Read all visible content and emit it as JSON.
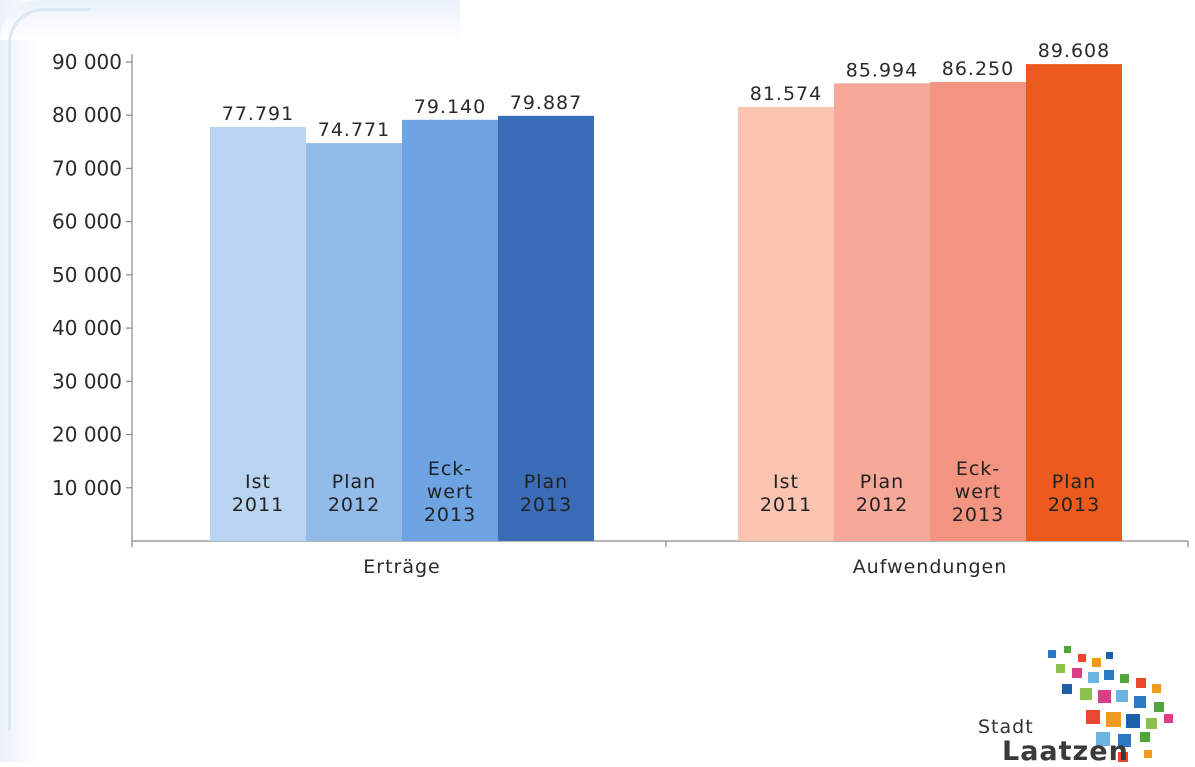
{
  "chart_data": {
    "type": "bar",
    "categories": [
      "Erträge",
      "Aufwendungen"
    ],
    "bar_labels": [
      [
        "Ist",
        "2011"
      ],
      [
        "Plan",
        "2012"
      ],
      [
        "Eck-",
        "wert",
        "2013"
      ],
      [
        "Plan",
        "2013"
      ]
    ],
    "data_labels": {
      "Erträge": [
        "77.791",
        "74.771",
        "79.140",
        "79.887"
      ],
      "Aufwendungen": [
        "81.574",
        "85.994",
        "86.250",
        "89.608"
      ]
    },
    "series": [
      {
        "values": [
          77791,
          81574
        ]
      },
      {
        "values": [
          74771,
          85994
        ]
      },
      {
        "values": [
          79140,
          86250
        ]
      },
      {
        "values": [
          79887,
          89608
        ]
      }
    ],
    "colors": {
      "Erträge": [
        "#b9d4f0",
        "#93bbea",
        "#6ea4e2",
        "#3b6cb8"
      ],
      "Aufwendungen": [
        "#fbc4b0",
        "#f7a999",
        "#f39480",
        "#ec5a1e"
      ]
    },
    "y_ticks": [
      10000,
      20000,
      30000,
      40000,
      50000,
      60000,
      70000,
      80000,
      90000
    ],
    "y_tick_labels": [
      "10 000",
      "20 000",
      "30 000",
      "40 000",
      "50 000",
      "60 000",
      "70 000",
      "80 000",
      "90 000"
    ],
    "ylim": [
      0,
      90000
    ],
    "grid": false,
    "legend": "none"
  },
  "logo": {
    "small": "Stadt",
    "big": "Laatzen",
    "squares": [
      "#2b78c5",
      "#4fa63b",
      "#e9482e",
      "#f29a1f",
      "#1d5fa8",
      "#8cc14b",
      "#d83f87",
      "#6bb3e0"
    ]
  }
}
